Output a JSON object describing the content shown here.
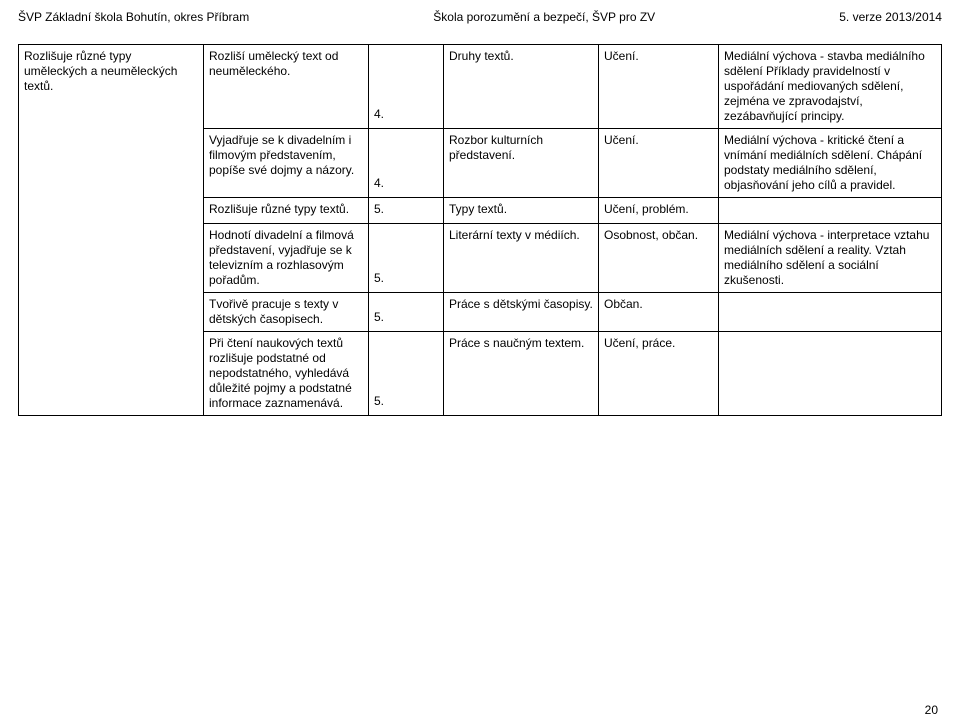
{
  "header": {
    "left": "ŠVP Základní škola Bohutín, okres Příbram",
    "center": "Škola porozumění a bezpečí, ŠVP pro ZV",
    "right": "5. verze 2013/2014"
  },
  "rows": [
    {
      "c1": "Rozlišuje různé typy uměleckých a neuměleckých textů.",
      "c2": "Rozliší umělecký text od neuměleckého.",
      "c3": "4.",
      "c4": "Druhy textů.",
      "c5": "Učení.",
      "c6": "Mediální výchova - stavba mediálního sdělení\nPříklady pravidelností v uspořádání mediovaných sdělení, zejména ve zpravodajství, zezábavňující principy."
    },
    {
      "c1": "",
      "c2": "Vyjadřuje se k divadelním i filmovým představením, popíše své dojmy a názory.",
      "c3": "4.",
      "c4": "Rozbor kulturních představení.",
      "c5": "Učení.",
      "c6": "Mediální výchova - kritické čtení a vnímání mediálních sdělení.   Chápání podstaty mediálního sdělení, objasňování jeho cílů a pravidel."
    },
    {
      "c1": "",
      "c2": "Rozlišuje různé typy textů.",
      "c3": "5.",
      "c4": "Typy textů.",
      "c5": "Učení, problém.",
      "c6": ""
    },
    {
      "c1": "",
      "c2": "Hodnotí divadelní a filmová představení, vyjadřuje se k televizním a rozhlasovým pořadům.",
      "c3": "5.",
      "c4": "Literární texty v médiích.",
      "c5": "Osobnost, občan.",
      "c6": "Mediální výchova - interpretace vztahu mediálních sdělení a reality.\nVztah mediálního sdělení a sociální zkušenosti."
    },
    {
      "c1": "",
      "c2": "Tvořivě pracuje s texty v dětských časopisech.",
      "c3": "5.",
      "c4": "Práce s dětskými časopisy.",
      "c5": "Občan.",
      "c6": ""
    },
    {
      "c1": "",
      "c2": "Při čtení naukových textů rozlišuje podstatné od nepodstatného, vyhledává důležité pojmy a podstatné informace zaznamenává.",
      "c3": "5.",
      "c4": "Práce s naučným textem.",
      "c5": "Učení, práce.",
      "c6": ""
    }
  ],
  "pageNumber": "20"
}
